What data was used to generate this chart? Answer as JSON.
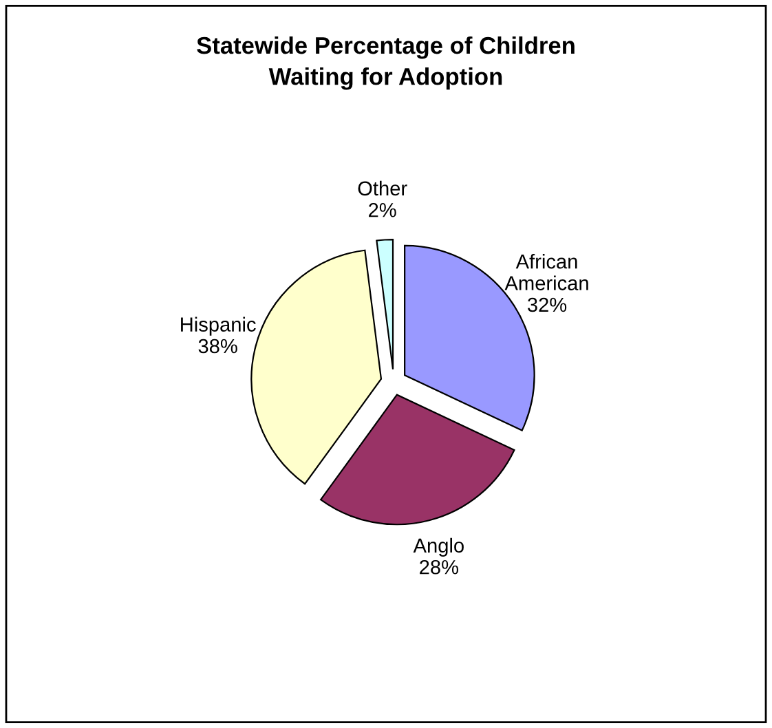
{
  "chart_data": {
    "type": "pie",
    "title": "Statewide Percentage of Children\nWaiting for Adoption",
    "categories": [
      "African American",
      "Anglo",
      "Hispanic",
      "Other"
    ],
    "values": [
      32,
      28,
      38,
      2
    ],
    "value_labels": [
      "32%",
      "28%",
      "38%",
      "2%"
    ],
    "colors": [
      "#9999ff",
      "#993366",
      "#ffffcc",
      "#ccffff"
    ],
    "legend": false
  }
}
